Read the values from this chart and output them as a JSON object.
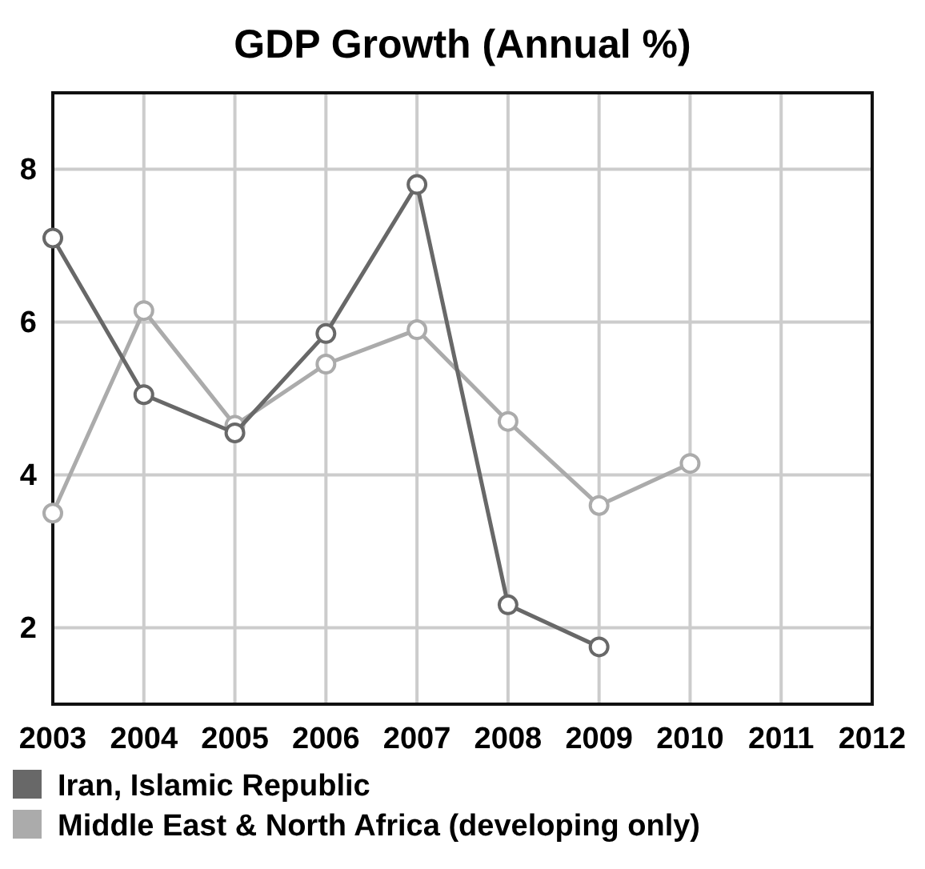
{
  "chart_data": {
    "type": "line",
    "title": "GDP Growth (Annual %)",
    "x": [
      2003,
      2004,
      2005,
      2006,
      2007,
      2008,
      2009,
      2010
    ],
    "series": [
      {
        "name": "Iran, Islamic Republic",
        "color": "#686868",
        "values": [
          7.1,
          5.05,
          4.55,
          5.85,
          7.8,
          2.3,
          1.75,
          null
        ]
      },
      {
        "name": "Middle East & North Africa (developing only)",
        "color": "#ababab",
        "values": [
          3.5,
          6.15,
          4.65,
          5.45,
          5.9,
          4.7,
          3.6,
          4.15
        ]
      }
    ],
    "xlim": [
      2003,
      2012
    ],
    "xticks": [
      2003,
      2004,
      2005,
      2006,
      2007,
      2008,
      2009,
      2010,
      2011,
      2012
    ],
    "ylim": [
      1,
      9
    ],
    "yticks": [
      2,
      4,
      6,
      8
    ],
    "grid": true,
    "legend": "bottom",
    "marker": "circle",
    "line_style": "solid"
  }
}
